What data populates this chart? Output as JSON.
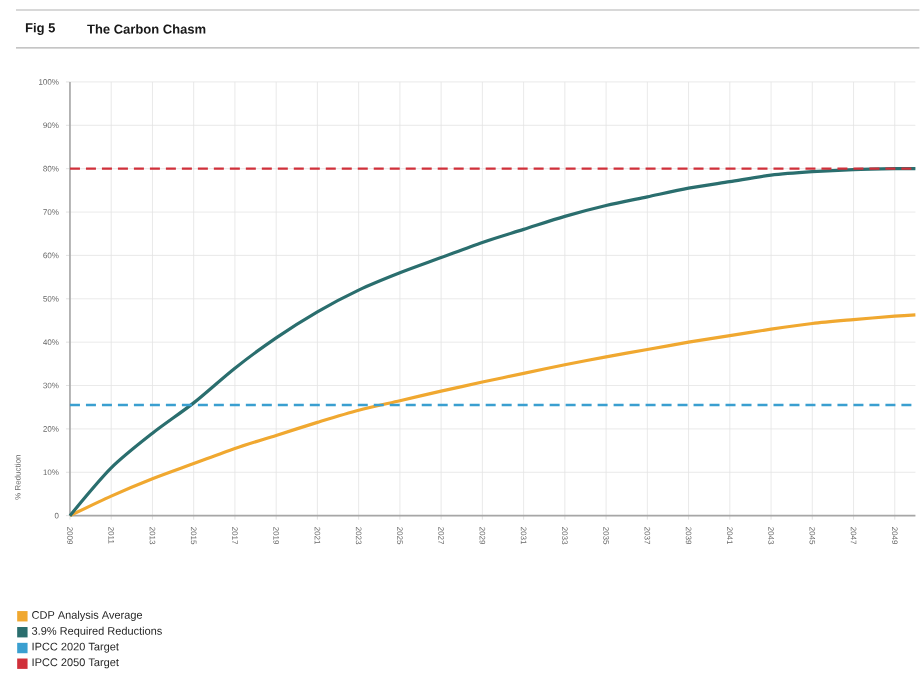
{
  "chart_data": {
    "type": "line",
    "title": "Fig 5",
    "subtitle": "The Carbon Chasm",
    "ylabel": "% Reduction",
    "xlim": [
      2009,
      2050
    ],
    "xticks": [
      2009,
      2011,
      2013,
      2015,
      2017,
      2019,
      2021,
      2023,
      2025,
      2027,
      2029,
      2031,
      2033,
      2035,
      2037,
      2039,
      2041,
      2043,
      2045,
      2047,
      2049
    ],
    "ylim": [
      0,
      100
    ],
    "yticks": [
      {
        "value": 0,
        "label": "0"
      },
      {
        "value": 10,
        "label": "10%"
      },
      {
        "value": 20,
        "label": "20%"
      },
      {
        "value": 30,
        "label": "30%"
      },
      {
        "value": 40,
        "label": "40%"
      },
      {
        "value": 50,
        "label": "50%"
      },
      {
        "value": 60,
        "label": "60%"
      },
      {
        "value": 70,
        "label": "70%"
      },
      {
        "value": 80,
        "label": "80%"
      },
      {
        "value": 90,
        "label": "90%"
      },
      {
        "value": 100,
        "label": "100%"
      }
    ],
    "x": [
      2009,
      2011,
      2013,
      2015,
      2017,
      2019,
      2021,
      2023,
      2025,
      2027,
      2029,
      2031,
      2033,
      2035,
      2037,
      2039,
      2041,
      2043,
      2045,
      2047,
      2049,
      2050
    ],
    "series": [
      {
        "name": "CDP Analysis Average",
        "color": "#f0a830",
        "values": [
          0,
          4.5,
          8.5,
          12,
          15.5,
          18.5,
          21.5,
          24.3,
          26.5,
          28.7,
          30.8,
          32.8,
          34.8,
          36.6,
          38.3,
          40,
          41.5,
          43,
          44.3,
          45.2,
          46,
          46.3
        ]
      },
      {
        "name": "3.9% Required Reductions",
        "color": "#2a6e6e",
        "values": [
          0,
          11,
          19,
          26,
          34,
          41,
          47,
          52,
          56,
          59.5,
          63,
          66,
          69,
          71.5,
          73.5,
          75.5,
          77,
          78.5,
          79.3,
          79.8,
          80,
          80
        ]
      }
    ],
    "ref_lines": [
      {
        "axis": "y",
        "value": 25.5,
        "label": "IPCC 2020 Target",
        "color": "#3a9fd0",
        "line_style": "dashed"
      },
      {
        "axis": "y",
        "value": 80,
        "label": "IPCC 2050 Target",
        "color": "#d0303a",
        "line_style": "dashed"
      }
    ],
    "grid": true,
    "legend": "bottom",
    "marker": "none",
    "line_style": "solid"
  }
}
